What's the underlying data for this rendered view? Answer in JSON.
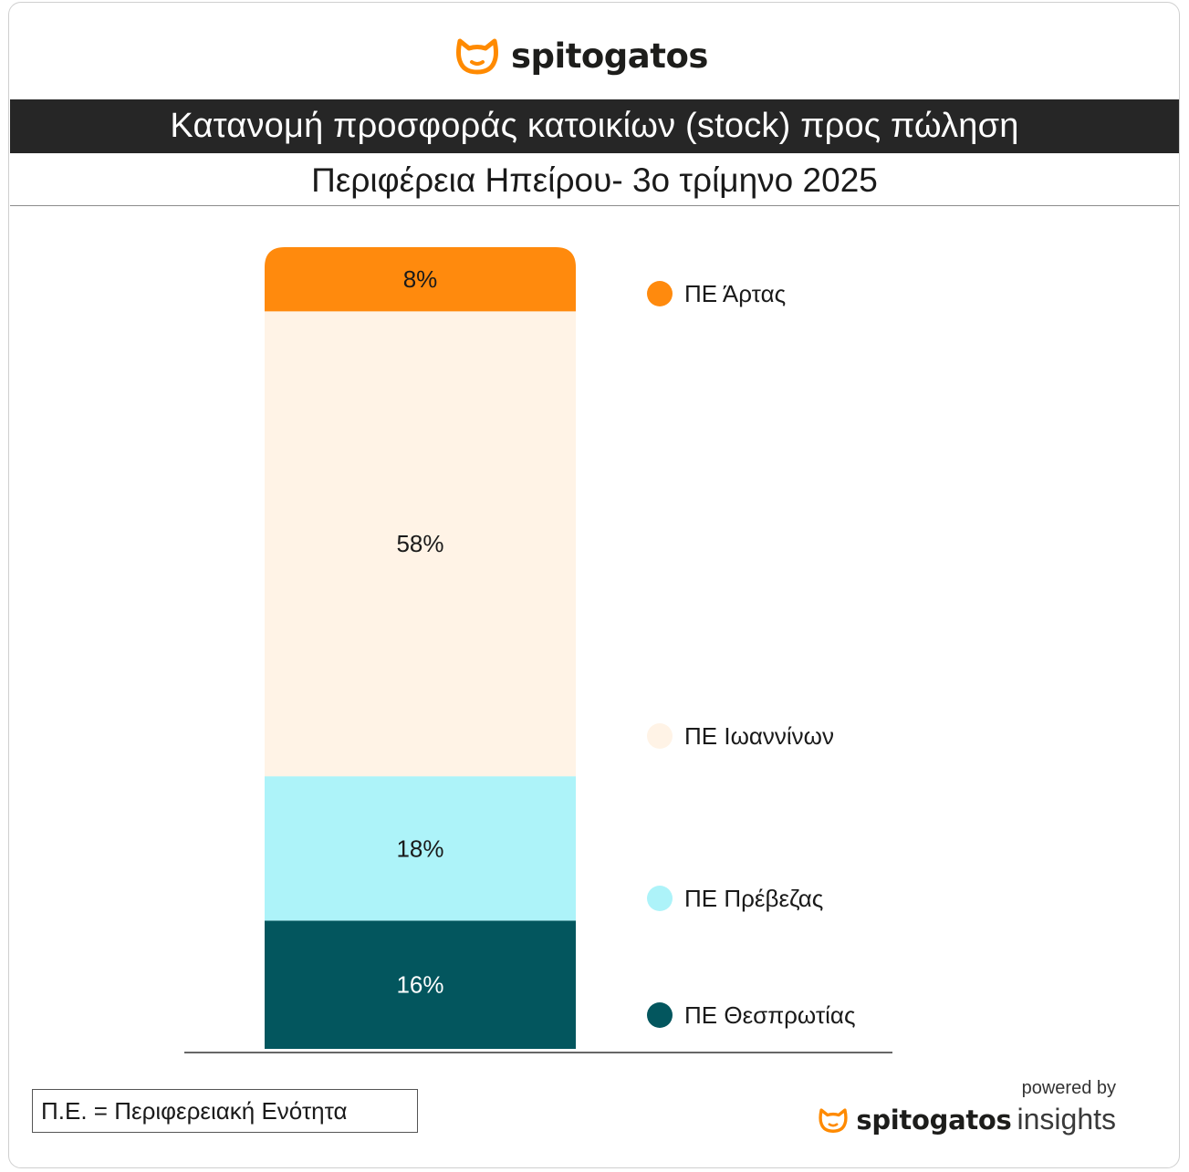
{
  "brand": {
    "name": "spitogatos",
    "accent": "#FF8A00"
  },
  "title": "Κατανομή προσφοράς κατοικίων (stock) προς πώληση",
  "subtitle": "Περιφέρεια Ηπείρου- 3ο τρίμηνο 2025",
  "footnote": "Π.Ε. = Περιφερειακή Ενότητα",
  "powered": {
    "by_label": "powered by",
    "brand": "spitogatos",
    "suffix": "insights"
  },
  "chart_data": {
    "type": "bar",
    "stacked": true,
    "orientation": "vertical",
    "title": "Κατανομή προσφοράς κατοικίων (stock) προς πώληση",
    "subtitle": "Περιφέρεια Ηπείρου- 3ο τρίμηνο 2025",
    "unit": "%",
    "legend_position": "right",
    "series": [
      {
        "name": "ΠΕ Θεσπρωτίας",
        "value": 16,
        "label": "16%",
        "color": "#03565E",
        "label_color": "#FFFFFF"
      },
      {
        "name": "ΠΕ Πρέβεζας",
        "value": 18,
        "label": "18%",
        "color": "#ADF3F9",
        "label_color": "#1A1A1A"
      },
      {
        "name": "ΠΕ Ιωαννίνων",
        "value": 58,
        "label": "58%",
        "color": "#FFF3E6",
        "label_color": "#1A1A1A"
      },
      {
        "name": "ΠΕ Άρτας",
        "value": 8,
        "label": "8%",
        "color": "#FF8A0D",
        "label_color": "#1A1A1A"
      }
    ]
  }
}
